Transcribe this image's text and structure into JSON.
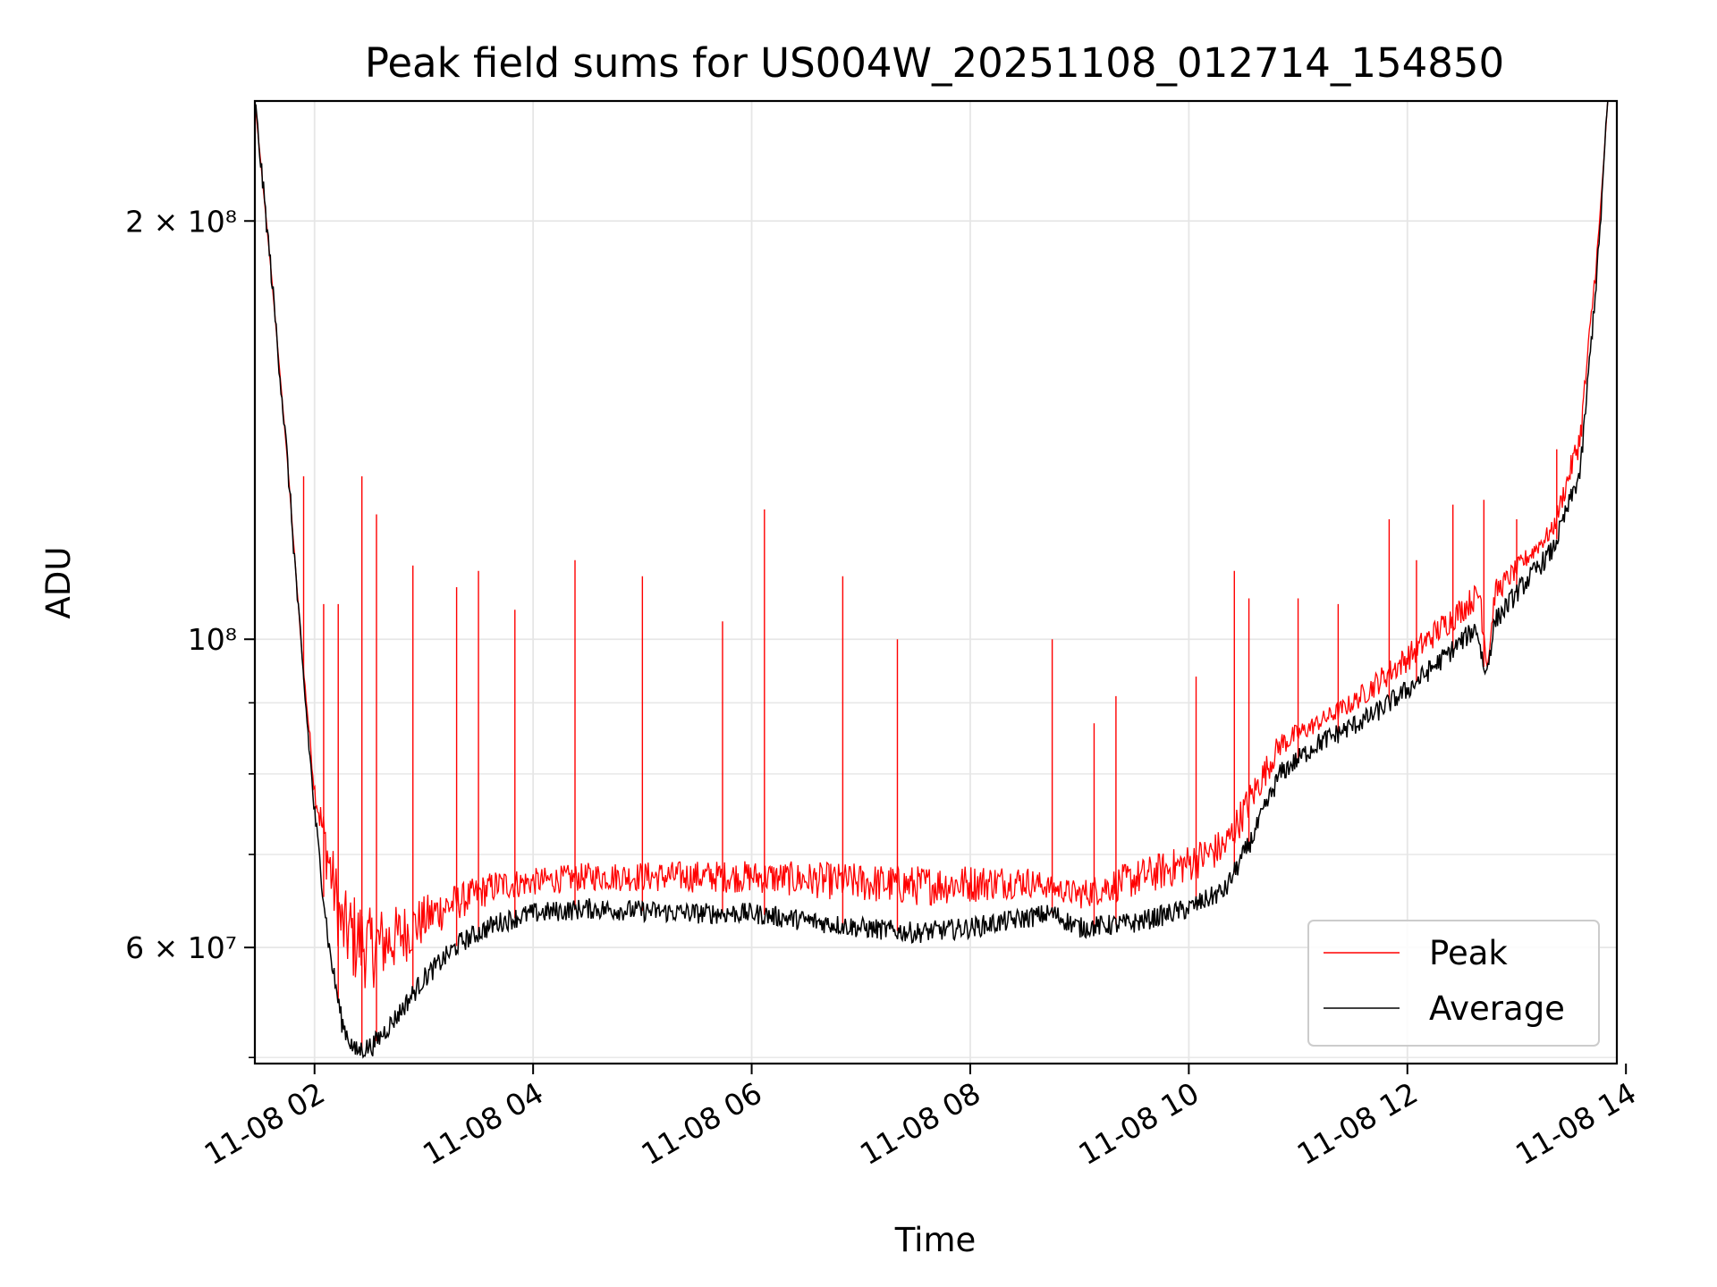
{
  "chart_data": {
    "type": "line",
    "title": "Peak field sums for US004W_20251108_012714_154850",
    "xlabel": "Time",
    "ylabel": "ADU",
    "x_axis": {
      "kind": "time",
      "range": [
        "2025-11-08T01:27:14",
        "2025-11-08T13:55:00"
      ],
      "ticks": [
        {
          "value": "2025-11-08T02:00",
          "label": "11-08 02"
        },
        {
          "value": "2025-11-08T04:00",
          "label": "11-08 04"
        },
        {
          "value": "2025-11-08T06:00",
          "label": "11-08 06"
        },
        {
          "value": "2025-11-08T08:00",
          "label": "11-08 08"
        },
        {
          "value": "2025-11-08T10:00",
          "label": "11-08 10"
        },
        {
          "value": "2025-11-08T12:00",
          "label": "11-08 12"
        },
        {
          "value": "2025-11-08T14:00",
          "label": "11-08 14"
        }
      ]
    },
    "y_axis": {
      "scale": "log",
      "range": [
        49500000,
        244000000
      ],
      "major_ticks": [
        {
          "value": 200000000,
          "label": "2 × 10⁸"
        },
        {
          "value": 100000000,
          "label": "10⁸"
        },
        {
          "value": 60000000,
          "label": "6 × 10⁷"
        }
      ],
      "minor_ticks": [
        50000000,
        70000000,
        80000000,
        90000000
      ]
    },
    "grid": true,
    "legend": {
      "position": "lower-right"
    },
    "series": [
      {
        "name": "Peak",
        "color": "#ff0000",
        "baseline_points": [
          [
            "2025-11-08T01:27:14",
            244000000
          ],
          [
            "2025-11-08T01:36",
            185000000
          ],
          [
            "2025-11-08T01:45",
            135000000
          ],
          [
            "2025-11-08T01:53",
            98000000
          ],
          [
            "2025-11-08T02:00",
            78000000
          ],
          [
            "2025-11-08T02:15",
            62000000
          ],
          [
            "2025-11-08T02:30",
            60000000
          ],
          [
            "2025-11-08T02:45",
            61000000
          ],
          [
            "2025-11-08T03:10",
            64000000
          ],
          [
            "2025-11-08T03:40",
            66500000
          ],
          [
            "2025-11-08T04:30",
            67500000
          ],
          [
            "2025-11-08T06:00",
            67500000
          ],
          [
            "2025-11-08T07:30",
            66500000
          ],
          [
            "2025-11-08T08:30",
            67000000
          ],
          [
            "2025-11-08T09:00",
            65500000
          ],
          [
            "2025-11-08T10:00",
            69000000
          ],
          [
            "2025-11-08T10:20",
            71000000
          ],
          [
            "2025-11-08T10:50",
            84000000
          ],
          [
            "2025-11-08T11:30",
            90000000
          ],
          [
            "2025-11-08T12:00",
            97000000
          ],
          [
            "2025-11-08T12:40",
            108000000
          ],
          [
            "2025-11-08T12:44",
            95000000
          ],
          [
            "2025-11-08T12:48",
            108000000
          ],
          [
            "2025-11-08T13:20",
            120000000
          ],
          [
            "2025-11-08T13:35",
            140000000
          ],
          [
            "2025-11-08T13:45",
            195000000
          ],
          [
            "2025-11-08T13:50",
            244000000
          ]
        ],
        "spikes": [
          [
            "2025-11-08T01:54",
            131000000
          ],
          [
            "2025-11-08T02:05",
            106000000
          ],
          [
            "2025-11-08T02:13",
            106000000
          ],
          [
            "2025-11-08T02:26",
            131000000
          ],
          [
            "2025-11-08T02:34",
            123000000
          ],
          [
            "2025-11-08T02:54",
            113000000
          ],
          [
            "2025-11-08T03:18",
            109000000
          ],
          [
            "2025-11-08T03:30",
            112000000
          ],
          [
            "2025-11-08T03:50",
            105000000
          ],
          [
            "2025-11-08T04:23",
            114000000
          ],
          [
            "2025-11-08T05:00",
            111000000
          ],
          [
            "2025-11-08T05:44",
            103000000
          ],
          [
            "2025-11-08T06:07",
            124000000
          ],
          [
            "2025-11-08T06:50",
            111000000
          ],
          [
            "2025-11-08T07:20",
            100000000
          ],
          [
            "2025-11-08T08:45",
            100000000
          ],
          [
            "2025-11-08T09:08",
            87000000
          ],
          [
            "2025-11-08T09:20",
            91000000
          ],
          [
            "2025-11-08T10:04",
            94000000
          ],
          [
            "2025-11-08T10:25",
            112000000
          ],
          [
            "2025-11-08T10:33",
            107000000
          ],
          [
            "2025-11-08T11:00",
            107000000
          ],
          [
            "2025-11-08T11:22",
            106000000
          ],
          [
            "2025-11-08T11:50",
            122000000
          ],
          [
            "2025-11-08T12:05",
            114000000
          ],
          [
            "2025-11-08T12:25",
            125000000
          ],
          [
            "2025-11-08T12:42",
            126000000
          ],
          [
            "2025-11-08T13:00",
            122000000
          ],
          [
            "2025-11-08T13:22",
            137000000
          ]
        ]
      },
      {
        "name": "Average",
        "color": "#000000",
        "points": [
          [
            "2025-11-08T01:27:14",
            244000000
          ],
          [
            "2025-11-08T01:36",
            185000000
          ],
          [
            "2025-11-08T01:45",
            135000000
          ],
          [
            "2025-11-08T01:53",
            97000000
          ],
          [
            "2025-11-08T02:00",
            75000000
          ],
          [
            "2025-11-08T02:08",
            60000000
          ],
          [
            "2025-11-08T02:15",
            53000000
          ],
          [
            "2025-11-08T02:22",
            50500000
          ],
          [
            "2025-11-08T02:32",
            51000000
          ],
          [
            "2025-11-08T02:45",
            53500000
          ],
          [
            "2025-11-08T03:00",
            57000000
          ],
          [
            "2025-11-08T03:20",
            60500000
          ],
          [
            "2025-11-08T03:40",
            62500000
          ],
          [
            "2025-11-08T04:00",
            63500000
          ],
          [
            "2025-11-08T04:30",
            64000000
          ],
          [
            "2025-11-08T05:30",
            63500000
          ],
          [
            "2025-11-08T06:00",
            63500000
          ],
          [
            "2025-11-08T07:00",
            62000000
          ],
          [
            "2025-11-08T07:30",
            61500000
          ],
          [
            "2025-11-08T08:00",
            62000000
          ],
          [
            "2025-11-08T08:45",
            63500000
          ],
          [
            "2025-11-08T09:00",
            62000000
          ],
          [
            "2025-11-08T09:30",
            62500000
          ],
          [
            "2025-11-08T10:00",
            64000000
          ],
          [
            "2025-11-08T10:20",
            66000000
          ],
          [
            "2025-11-08T10:35",
            72000000
          ],
          [
            "2025-11-08T10:50",
            80000000
          ],
          [
            "2025-11-08T11:10",
            84000000
          ],
          [
            "2025-11-08T11:40",
            88000000
          ],
          [
            "2025-11-08T12:00",
            92000000
          ],
          [
            "2025-11-08T12:20",
            97000000
          ],
          [
            "2025-11-08T12:38",
            102000000
          ],
          [
            "2025-11-08T12:43",
            94000000
          ],
          [
            "2025-11-08T12:48",
            103000000
          ],
          [
            "2025-11-08T13:00",
            108000000
          ],
          [
            "2025-11-08T13:20",
            116000000
          ],
          [
            "2025-11-08T13:35",
            132000000
          ],
          [
            "2025-11-08T13:45",
            190000000
          ],
          [
            "2025-11-08T13:50",
            244000000
          ]
        ]
      }
    ]
  }
}
